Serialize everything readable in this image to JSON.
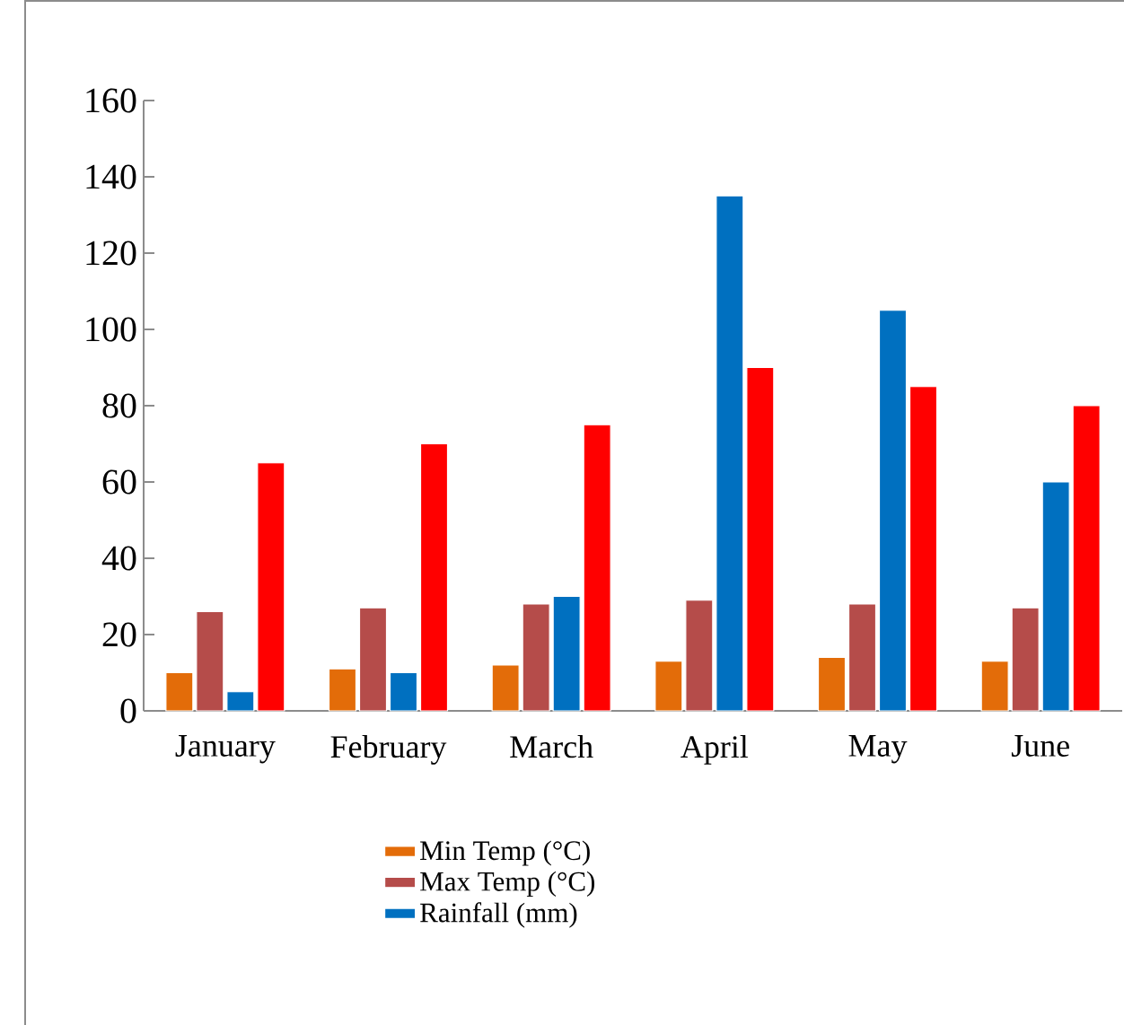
{
  "chart_data": {
    "type": "bar",
    "categories": [
      "January",
      "February",
      "March",
      "April",
      "May",
      "June"
    ],
    "series": [
      {
        "name": "Min Temp (°C)",
        "color": "#e36c09",
        "values": [
          10,
          11,
          12,
          13,
          14,
          13
        ]
      },
      {
        "name": "Max Temp (°C)",
        "color": "#b54c4a",
        "values": [
          26,
          27,
          28,
          29,
          28,
          27
        ]
      },
      {
        "name": "Rainfall (mm)",
        "color": "#0070c0",
        "values": [
          5,
          10,
          30,
          135,
          105,
          60
        ]
      },
      {
        "color": "#ff0000",
        "values": [
          65,
          70,
          75,
          90,
          85,
          80
        ]
      }
    ],
    "ylim": [
      0,
      160
    ],
    "yticks": [
      0,
      20,
      40,
      60,
      80,
      100,
      120,
      140,
      160
    ],
    "grid": false,
    "legend": "bottom"
  }
}
